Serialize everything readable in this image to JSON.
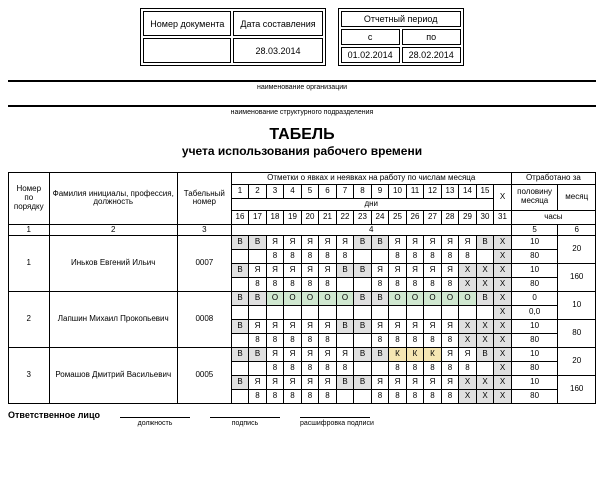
{
  "header": {
    "doc_num_label": "Номер документа",
    "doc_date_label": "Дата составления",
    "doc_date": "28.03.2014",
    "period_label": "Отчетный период",
    "from_label": "с",
    "to_label": "по",
    "from_date": "01.02.2014",
    "to_date": "28.02.2014"
  },
  "captions": {
    "org": "наименование организации",
    "dept": "наименование структурного подразделения"
  },
  "title": {
    "line1": "ТАБЕЛЬ",
    "line2": "учета использования рабочего времени"
  },
  "cols": {
    "num": "Номер по порядку",
    "fio": "Фамилия инициалы, профессия, должность",
    "tabnum": "Табельный номер",
    "marks": "Отметки о явках и неявках на работу по числам месяца",
    "worked": "Отработано за",
    "half": "половину месяца",
    "month": "месяц",
    "days": "дни",
    "hours": "часы",
    "x_label": "X",
    "r2": [
      "1",
      "2",
      "3",
      "4",
      "5",
      "6"
    ]
  },
  "days_top": [
    "1",
    "2",
    "3",
    "4",
    "5",
    "6",
    "7",
    "8",
    "9",
    "10",
    "11",
    "12",
    "13",
    "14",
    "15"
  ],
  "days_bot": [
    "16",
    "17",
    "18",
    "19",
    "20",
    "21",
    "22",
    "23",
    "24",
    "25",
    "26",
    "27",
    "28",
    "29",
    "30",
    "31"
  ],
  "colors": {
    "B": "#e0e0e0",
    "O": "#d0e8d0",
    "K": "#f5e6b3",
    "blank": "#ffffff"
  },
  "rows": [
    {
      "n": "1",
      "fio": "Иньков Евгений Ильич",
      "tab": "0007",
      "l1": [
        "В",
        "В",
        "Я",
        "Я",
        "Я",
        "Я",
        "Я",
        "В",
        "В",
        "Я",
        "Я",
        "Я",
        "Я",
        "Я",
        "В",
        "Х"
      ],
      "l2": [
        "",
        "",
        "8",
        "8",
        "8",
        "8",
        "8",
        "",
        "",
        "8",
        "8",
        "8",
        "8",
        "8",
        "",
        "Х"
      ],
      "l3": [
        "В",
        "Я",
        "Я",
        "Я",
        "Я",
        "Я",
        "В",
        "В",
        "Я",
        "Я",
        "Я",
        "Я",
        "Я",
        "Х",
        "Х",
        "Х"
      ],
      "l4": [
        "",
        "8",
        "8",
        "8",
        "8",
        "8",
        "",
        "",
        "8",
        "8",
        "8",
        "8",
        "8",
        "Х",
        "Х",
        "Х"
      ],
      "half": [
        "10",
        "80",
        "10",
        "80"
      ],
      "month": [
        "20",
        "160"
      ]
    },
    {
      "n": "2",
      "fio": "Лапшин Михаил Прокопьевич",
      "tab": "0008",
      "l1": [
        "В",
        "В",
        "О",
        "О",
        "О",
        "О",
        "О",
        "В",
        "В",
        "О",
        "О",
        "О",
        "О",
        "О",
        "В",
        "Х"
      ],
      "l2": [
        "",
        "",
        "",
        "",
        "",
        "",
        "",
        "",
        "",
        "",
        "",
        "",
        "",
        "",
        "",
        "Х"
      ],
      "l3": [
        "В",
        "Я",
        "Я",
        "Я",
        "Я",
        "Я",
        "В",
        "В",
        "Я",
        "Я",
        "Я",
        "Я",
        "Я",
        "Х",
        "Х",
        "Х"
      ],
      "l4": [
        "",
        "8",
        "8",
        "8",
        "8",
        "8",
        "",
        "",
        "8",
        "8",
        "8",
        "8",
        "8",
        "Х",
        "Х",
        "Х"
      ],
      "half": [
        "0",
        "0,0",
        "10",
        "80"
      ],
      "month": [
        "10",
        "80"
      ]
    },
    {
      "n": "3",
      "fio": "Ромашов Дмитрий Васильевич",
      "tab": "0005",
      "l1": [
        "В",
        "В",
        "Я",
        "Я",
        "Я",
        "Я",
        "Я",
        "В",
        "В",
        "К",
        "К",
        "К",
        "Я",
        "Я",
        "В",
        "Х"
      ],
      "l2": [
        "",
        "",
        "8",
        "8",
        "8",
        "8",
        "8",
        "",
        "",
        "8",
        "8",
        "8",
        "8",
        "8",
        "",
        "Х"
      ],
      "l3": [
        "В",
        "Я",
        "Я",
        "Я",
        "Я",
        "Я",
        "В",
        "В",
        "Я",
        "Я",
        "Я",
        "Я",
        "Я",
        "Х",
        "Х",
        "Х"
      ],
      "l4": [
        "",
        "8",
        "8",
        "8",
        "8",
        "8",
        "",
        "",
        "8",
        "8",
        "8",
        "8",
        "8",
        "Х",
        "Х",
        "Х"
      ],
      "half": [
        "10",
        "80",
        "10",
        "80"
      ],
      "month": [
        "20",
        "160"
      ]
    }
  ],
  "footer": {
    "resp": "Ответственное лицо",
    "pos": "должность",
    "sign": "подпись",
    "dec": "расшифровка подписи"
  }
}
